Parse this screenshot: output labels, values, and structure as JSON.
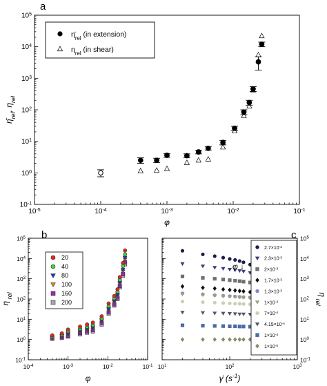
{
  "chart_data": [
    {
      "panel": "a",
      "type": "scatter",
      "xlabel": "φ",
      "ylabel": "η̄rel, ηrel",
      "xscale": "log",
      "yscale": "log",
      "xlim": [
        1e-05,
        0.1
      ],
      "ylim": [
        0.1,
        100000
      ],
      "x_ticks": [
        "10-5",
        "10-4",
        "10-3",
        "10-2",
        "10-1"
      ],
      "y_ticks": [
        "10-1",
        "100",
        "101",
        "102",
        "103",
        "104",
        "105"
      ],
      "legend_position": "top-left",
      "series": [
        {
          "name": "η̄rel (in extension)",
          "marker": "filled-circle",
          "color": "#000000",
          "points": [
            {
              "x": 0.0001,
              "y": 1.0,
              "err": 0.25,
              "open": true
            },
            {
              "x": 0.0004,
              "y": 2.5,
              "err": 0.5
            },
            {
              "x": 0.0007,
              "y": 2.5,
              "err": 0.4
            },
            {
              "x": 0.001,
              "y": 3.6,
              "err": 0.5
            },
            {
              "x": 0.002,
              "y": 3.5,
              "err": 0.5
            },
            {
              "x": 0.003,
              "y": 4.6,
              "err": 0.6
            },
            {
              "x": 0.0042,
              "y": 6.0,
              "err": 0.7
            },
            {
              "x": 0.007,
              "y": 9.2,
              "err": 1.5
            },
            {
              "x": 0.0105,
              "y": 26.0,
              "err": 4
            },
            {
              "x": 0.0145,
              "y": 85.0,
              "err": 15
            },
            {
              "x": 0.0175,
              "y": 170.0,
              "err": 30
            },
            {
              "x": 0.02,
              "y": 460.0,
              "err": 80
            },
            {
              "x": 0.024,
              "y": 3300.0,
              "err": 1500
            },
            {
              "x": 0.027,
              "y": 12000.0,
              "err": 2000
            }
          ]
        },
        {
          "name": "ηrel (in shear)",
          "marker": "open-triangle",
          "color": "#000000",
          "points": [
            {
              "x": 0.0004,
              "y": 1.15
            },
            {
              "x": 0.0007,
              "y": 1.2
            },
            {
              "x": 0.001,
              "y": 1.35
            },
            {
              "x": 0.002,
              "y": 2.1
            },
            {
              "x": 0.003,
              "y": 2.5
            },
            {
              "x": 0.0042,
              "y": 2.7
            },
            {
              "x": 0.007,
              "y": 6.5
            },
            {
              "x": 0.0105,
              "y": 21.0
            },
            {
              "x": 0.0145,
              "y": 65.0
            },
            {
              "x": 0.0175,
              "y": 130.0
            },
            {
              "x": 0.02,
              "y": 420.0
            },
            {
              "x": 0.024,
              "y": 5500.0
            },
            {
              "x": 0.027,
              "y": 22000.0
            }
          ]
        }
      ]
    },
    {
      "panel": "b",
      "type": "scatter",
      "xlabel": "φ",
      "ylabel": "η rel",
      "xscale": "log",
      "yscale": "log",
      "xlim": [
        0.0001,
        0.1
      ],
      "ylim": [
        0.1,
        100000
      ],
      "x_ticks": [
        "10-4",
        "10-3",
        "10-2",
        "10-1"
      ],
      "y_ticks": [
        "10-1",
        "100",
        "101",
        "102",
        "103",
        "104",
        "105"
      ],
      "legend_position": "top-left",
      "x": [
        0.0004,
        0.0007,
        0.001,
        0.002,
        0.003,
        0.0042,
        0.007,
        0.0105,
        0.0145,
        0.0175,
        0.02,
        0.024,
        0.027
      ],
      "series": [
        {
          "name": "20",
          "color": "#e8231b",
          "marker": "circle",
          "values": [
            1.6,
            2.0,
            3.1,
            4.3,
            5.5,
            6.8,
            14,
            60,
            140,
            300,
            1200,
            6000,
            25000
          ]
        },
        {
          "name": "40",
          "color": "#3ed63e",
          "marker": "circle",
          "values": [
            1.4,
            1.7,
            2.6,
            3.4,
            4.3,
            5.2,
            11,
            45,
            110,
            230,
            900,
            4200,
            16000
          ]
        },
        {
          "name": "80",
          "color": "#1f2fd0",
          "marker": "triangle-down",
          "values": [
            1.3,
            1.5,
            2.0,
            2.8,
            3.4,
            4.0,
            9,
            32,
            80,
            170,
            650,
            2800,
            11000
          ]
        },
        {
          "name": "100",
          "color": "#e08a10",
          "marker": "triangle-down",
          "values": [
            1.25,
            1.45,
            1.8,
            2.5,
            3.0,
            3.5,
            8,
            28,
            70,
            150,
            560,
            2300,
            9000
          ]
        },
        {
          "name": "160",
          "color": "#9a2ab0",
          "marker": "square",
          "values": [
            1.15,
            1.3,
            1.55,
            2.1,
            2.5,
            2.9,
            6.5,
            22,
            55,
            120,
            440,
            1700,
            6500
          ]
        },
        {
          "name": "200",
          "color": "#a8a8a8",
          "marker": "square",
          "values": [
            1.1,
            1.2,
            1.4,
            1.8,
            2.2,
            2.5,
            5.5,
            19,
            48,
            100,
            380,
            1400,
            5200
          ]
        }
      ]
    },
    {
      "panel": "c",
      "type": "scatter",
      "xlabel": "γ̇ (s-1)",
      "ylabel": "η rel",
      "xscale": "log",
      "yscale": "log",
      "xlim": [
        10,
        1000
      ],
      "ylim": [
        0.1,
        100000
      ],
      "x_ticks": [
        "101",
        "102",
        "103"
      ],
      "y_ticks": [
        "10-1",
        "100",
        "101",
        "102",
        "103",
        "104",
        "105"
      ],
      "legend_position": "right",
      "annotation": "φ ↓",
      "x": [
        20,
        40,
        60,
        80,
        100,
        120,
        140,
        160,
        200
      ],
      "series": [
        {
          "name": "2.7×10-3",
          "color": "#1c1c4a",
          "marker": "circle",
          "values": [
            24000,
            16000,
            13000,
            11000,
            9500,
            8500,
            7500,
            6500,
            5000
          ]
        },
        {
          "name": "2.3×10-3",
          "color": "#3a3a7a",
          "marker": "triangle-down",
          "values": [
            5500,
            4200,
            3600,
            3200,
            2900,
            2700,
            2500,
            2300,
            2000
          ]
        },
        {
          "name": "2×10-3",
          "color": "#707070",
          "marker": "square",
          "values": [
            1300,
            1100,
            1000,
            920,
            850,
            800,
            760,
            720,
            650
          ]
        },
        {
          "name": "1.7×10-3",
          "color": "#101010",
          "marker": "diamond",
          "values": [
            420,
            360,
            330,
            300,
            280,
            265,
            250,
            240,
            220
          ]
        },
        {
          "name": "1.3×10-3",
          "color": "#7d86c8",
          "marker": "circle",
          "values": [
            190,
            170,
            155,
            145,
            138,
            132,
            128,
            124,
            118
          ]
        },
        {
          "name": "1×10-3",
          "color": "#9aa07a",
          "marker": "triangle-down",
          "values": [
            175,
            160,
            148,
            140,
            133,
            128,
            124,
            120,
            115
          ]
        },
        {
          "name": "7×10-4",
          "color": "#c8d0b0",
          "marker": "circle",
          "values": [
            75,
            70,
            66,
            63,
            61,
            59,
            58,
            57,
            55
          ]
        },
        {
          "name": "4.15×10-4",
          "color": "#555566",
          "marker": "triangle-down",
          "values": [
            22,
            21,
            20,
            19.5,
            19,
            18.5,
            18,
            18,
            17.5
          ]
        },
        {
          "name": "1×10-4",
          "color": "#4a6aa8",
          "marker": "square",
          "values": [
            5,
            4.8,
            4.7,
            4.6,
            4.5,
            4.5,
            4.4,
            4.4,
            4.3
          ]
        },
        {
          "name": "1×10-5",
          "color": "#8a8a6a",
          "marker": "diamond",
          "values": [
            1.0,
            1.0,
            1.0,
            1.0,
            1.0,
            1.0,
            1.0,
            1.0,
            1.0
          ]
        }
      ]
    }
  ]
}
